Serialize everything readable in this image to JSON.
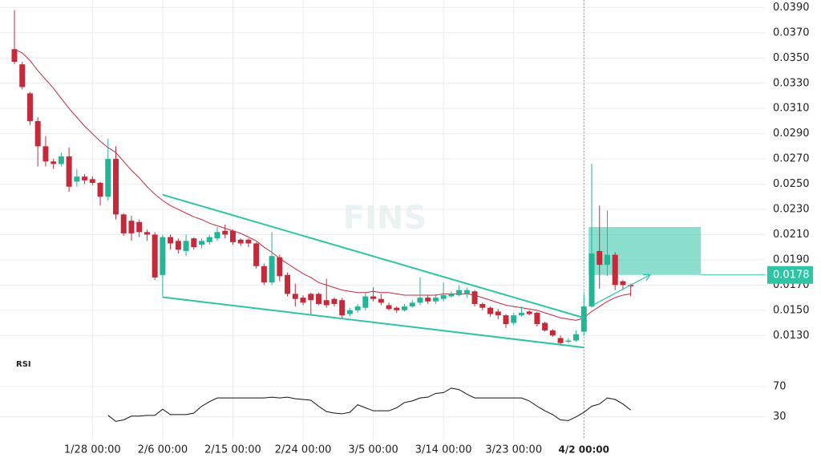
{
  "chart_data": {
    "type": "candlestick",
    "watermark": "FINS",
    "categories": [
      null,
      null,
      null,
      null,
      null,
      null,
      null,
      null,
      null,
      null,
      "1/28 00:00",
      null,
      null,
      null,
      null,
      null,
      null,
      null,
      null,
      "2/6 00:00",
      null,
      null,
      null,
      null,
      null,
      null,
      null,
      null,
      "2/15 00:00",
      null,
      null,
      null,
      null,
      null,
      null,
      null,
      null,
      "2/24 00:00",
      null,
      null,
      null,
      null,
      null,
      null,
      null,
      null,
      "3/5 00:00",
      null,
      null,
      null,
      null,
      null,
      null,
      null,
      null,
      "3/14 00:00",
      null,
      null,
      null,
      null,
      null,
      null,
      null,
      null,
      "3/23 00:00",
      null,
      null,
      null,
      null,
      null,
      null,
      null,
      null,
      "4/2 00:00",
      null,
      null,
      null,
      null,
      null,
      null
    ],
    "crosshair": 73,
    "open": [
      0.0357,
      0.0345,
      0.0322,
      0.03,
      0.028,
      0.0268,
      0.0266,
      0.0272,
      0.0252,
      0.0256,
      0.0254,
      0.0251,
      0.024,
      0.027,
      0.0226,
      0.0221,
      0.022,
      0.0212,
      0.021,
      0.0178,
      0.0208,
      0.0205,
      0.0197,
      0.0207,
      0.0202,
      0.0204,
      0.0207,
      0.0213,
      0.0213,
      0.0206,
      0.0206,
      0.0203,
      0.0185,
      0.0172,
      0.0192,
      0.0178,
      0.0163,
      0.016,
      0.0163,
      0.0163,
      0.0158,
      0.0159,
      0.0158,
      0.0147,
      0.015,
      0.0152,
      0.0161,
      0.0159,
      0.0154,
      0.0152,
      0.015,
      0.0153,
      0.0156,
      0.016,
      0.0157,
      0.0159,
      0.0161,
      0.0162,
      0.0163,
      0.0165,
      0.0155,
      0.0152,
      0.0149,
      0.0146,
      0.014,
      0.0146,
      0.0149,
      0.0148,
      0.014,
      0.0134,
      0.0128,
      0.0125,
      0.0126,
      0.0133,
      0.0153,
      0.0197,
      0.0186,
      0.0194,
      0.0173,
      0.017
    ],
    "high": [
      0.0388,
      0.0347,
      0.0323,
      0.0303,
      0.0288,
      0.027,
      0.0275,
      0.0279,
      0.0262,
      0.0258,
      0.0256,
      0.0252,
      0.0286,
      0.028,
      0.0227,
      0.0225,
      0.0222,
      0.0214,
      0.0212,
      0.021,
      0.021,
      0.0207,
      0.021,
      0.0208,
      0.0207,
      0.021,
      0.0216,
      0.0218,
      0.0214,
      0.0207,
      0.0207,
      0.0204,
      0.0187,
      0.0212,
      0.0194,
      0.018,
      0.0171,
      0.0162,
      0.0164,
      0.0164,
      0.0175,
      0.016,
      0.016,
      0.0152,
      0.0155,
      0.0164,
      0.0168,
      0.0163,
      0.0156,
      0.0153,
      0.0155,
      0.0158,
      0.0176,
      0.0162,
      0.0163,
      0.0172,
      0.0165,
      0.017,
      0.0168,
      0.0166,
      0.0156,
      0.0153,
      0.0151,
      0.0147,
      0.0148,
      0.0153,
      0.015,
      0.0149,
      0.0141,
      0.0135,
      0.013,
      0.0128,
      0.0134,
      0.0163,
      0.0266,
      0.0233,
      0.0229,
      0.0196,
      0.0174,
      0.0171
    ],
    "low": [
      0.0345,
      0.0325,
      0.0297,
      0.0264,
      0.0264,
      0.0262,
      0.0264,
      0.0244,
      0.0248,
      0.025,
      0.0249,
      0.0233,
      0.0237,
      0.0222,
      0.0209,
      0.0205,
      0.0208,
      0.0205,
      0.0174,
      0.0161,
      0.0198,
      0.0195,
      0.0193,
      0.0198,
      0.0199,
      0.0202,
      0.0205,
      0.0207,
      0.0202,
      0.0201,
      0.02,
      0.0183,
      0.017,
      0.017,
      0.0173,
      0.0161,
      0.0153,
      0.0154,
      0.0146,
      0.0154,
      0.0152,
      0.0153,
      0.0143,
      0.0145,
      0.0148,
      0.015,
      0.0157,
      0.0154,
      0.015,
      0.0148,
      0.0149,
      0.0152,
      0.0154,
      0.0155,
      0.0155,
      0.0157,
      0.016,
      0.0161,
      0.016,
      0.0153,
      0.015,
      0.0145,
      0.0143,
      0.0136,
      0.0138,
      0.0145,
      0.0146,
      0.0137,
      0.0133,
      0.0129,
      0.0122,
      0.0124,
      0.0125,
      0.013,
      0.0152,
      0.0167,
      0.0177,
      0.0166,
      0.0166,
      0.0161
    ],
    "close": [
      0.0347,
      0.0327,
      0.03,
      0.028,
      0.0268,
      0.0266,
      0.0272,
      0.0248,
      0.0256,
      0.0253,
      0.0251,
      0.024,
      0.027,
      0.0226,
      0.0211,
      0.0211,
      0.0212,
      0.021,
      0.0176,
      0.0208,
      0.0203,
      0.0198,
      0.0205,
      0.02,
      0.0205,
      0.0208,
      0.0212,
      0.021,
      0.0204,
      0.0203,
      0.0203,
      0.0185,
      0.0172,
      0.0193,
      0.0177,
      0.0163,
      0.0159,
      0.0156,
      0.0158,
      0.0155,
      0.0154,
      0.0155,
      0.0146,
      0.015,
      0.0153,
      0.0161,
      0.0159,
      0.0156,
      0.0151,
      0.015,
      0.0153,
      0.0156,
      0.016,
      0.0157,
      0.016,
      0.0162,
      0.0163,
      0.0166,
      0.0166,
      0.0155,
      0.0152,
      0.0147,
      0.0146,
      0.0139,
      0.0146,
      0.0148,
      0.0147,
      0.0139,
      0.0134,
      0.013,
      0.0124,
      0.0126,
      0.0131,
      0.0153,
      0.0195,
      0.0186,
      0.0194,
      0.017,
      0.017,
      0.0169
    ],
    "up_color": "#22b596",
    "down_color": "#c62a3a",
    "moving_average": {
      "color": "#c62a3a",
      "values": [
        0.0357,
        0.0354,
        0.0348,
        0.034,
        0.0333,
        0.0326,
        0.0318,
        0.031,
        0.0303,
        0.0296,
        0.029,
        0.0284,
        0.0279,
        0.0275,
        0.0268,
        0.0261,
        0.0255,
        0.0248,
        0.0242,
        0.0237,
        0.0233,
        0.023,
        0.0227,
        0.0224,
        0.0222,
        0.0219,
        0.0217,
        0.0215,
        0.0213,
        0.0211,
        0.0208,
        0.0205,
        0.02,
        0.0196,
        0.0191,
        0.0187,
        0.0183,
        0.0179,
        0.0176,
        0.0172,
        0.017,
        0.0168,
        0.0166,
        0.0165,
        0.0164,
        0.0164,
        0.0165,
        0.0164,
        0.0164,
        0.0163,
        0.0162,
        0.0162,
        0.0162,
        0.0162,
        0.0162,
        0.0163,
        0.0163,
        0.0163,
        0.0163,
        0.0162,
        0.016,
        0.0158,
        0.0156,
        0.0154,
        0.0153,
        0.0152,
        0.0151,
        0.015,
        0.0148,
        0.0146,
        0.0144,
        0.0143,
        0.0142,
        0.0144,
        0.0149,
        0.0153,
        0.0157,
        0.016,
        0.0162,
        0.0163
      ]
    },
    "ylim": [
      0.0113,
      0.0396
    ],
    "yticks": [
      {
        "value": 0.013,
        "label": "0.0130"
      },
      {
        "value": 0.015,
        "label": "0.0150"
      },
      {
        "value": 0.017,
        "label": "0.0170"
      },
      {
        "value": 0.019,
        "label": "0.0190"
      },
      {
        "value": 0.021,
        "label": "0.0210"
      },
      {
        "value": 0.023,
        "label": "0.0230"
      },
      {
        "value": 0.025,
        "label": "0.0250"
      },
      {
        "value": 0.027,
        "label": "0.0270"
      },
      {
        "value": 0.029,
        "label": "0.0290"
      },
      {
        "value": 0.031,
        "label": "0.0310"
      },
      {
        "value": 0.033,
        "label": "0.0330"
      },
      {
        "value": 0.035,
        "label": "0.0350"
      },
      {
        "value": 0.037,
        "label": "0.0370"
      },
      {
        "value": 0.039,
        "label": "0.0390"
      }
    ],
    "current_price": 0.0178,
    "drawing_color": "#2ec4a5",
    "trendlines": [
      {
        "x": [
          19,
          73
        ],
        "y": [
          0.02416,
          0.0144
        ]
      },
      {
        "x": [
          19,
          73
        ],
        "y": [
          0.01604,
          0.01205
        ]
      }
    ],
    "arrow": {
      "x": [
        74,
        81.5
      ],
      "y": [
        0.01536,
        0.01782
      ]
    },
    "box": {
      "x": [
        73.6,
        88
      ],
      "y": [
        0.0216,
        0.0178
      ]
    },
    "rsi": {
      "title": "RSI",
      "color": "#111111",
      "ylim": [
        0,
        88
      ],
      "yticks": [
        30,
        70
      ],
      "values": [
        null,
        null,
        null,
        null,
        null,
        null,
        null,
        null,
        null,
        null,
        null,
        null,
        32,
        24,
        26,
        31,
        31,
        32,
        32,
        40,
        33,
        33,
        33,
        35,
        44,
        50,
        55,
        55,
        55,
        55,
        55,
        55,
        55,
        56,
        55,
        56,
        54,
        53,
        52,
        44,
        37,
        35,
        34,
        36,
        46,
        42,
        38,
        38,
        38,
        42,
        49,
        51,
        55,
        56,
        61,
        62,
        68,
        66,
        60,
        55,
        55,
        55,
        55,
        55,
        55,
        55,
        51,
        44,
        38,
        33,
        26,
        25,
        30,
        36,
        44,
        47,
        55,
        53,
        47,
        39
      ]
    }
  }
}
